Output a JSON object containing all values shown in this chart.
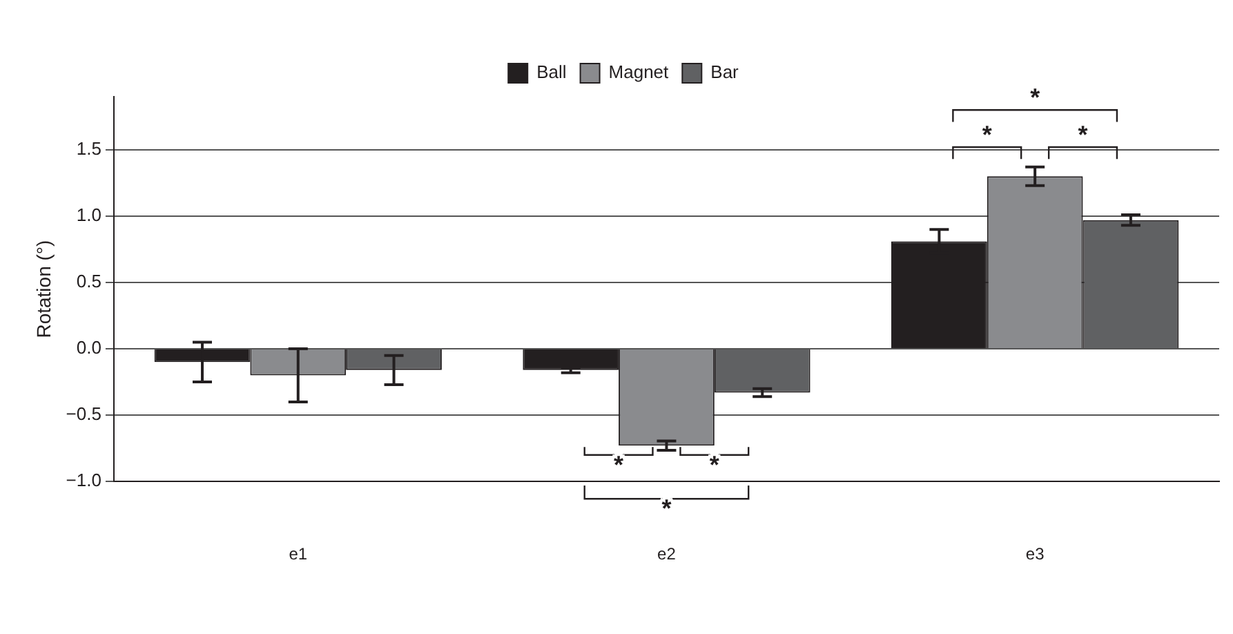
{
  "chart_data": {
    "type": "bar",
    "ylabel": "Rotation (°)",
    "categories": [
      "e1",
      "e2",
      "e3"
    ],
    "series": [
      {
        "name": "Ball",
        "color": "#231f20",
        "values": [
          -0.1,
          -0.16,
          0.81
        ],
        "errors": [
          0.15,
          0.02,
          0.09
        ]
      },
      {
        "name": "Magnet",
        "color": "#8a8b8e",
        "values": [
          -0.2,
          -0.73,
          1.3
        ],
        "errors": [
          0.2,
          0.035,
          0.07
        ]
      },
      {
        "name": "Bar",
        "color": "#606163",
        "values": [
          -0.16,
          -0.33,
          0.97
        ],
        "errors": [
          0.11,
          0.03,
          0.04
        ]
      }
    ],
    "ylim": [
      -1.0,
      1.9
    ],
    "yticks": [
      {
        "value": -1.0,
        "label": "−1.0"
      },
      {
        "value": -0.5,
        "label": "−0.5"
      },
      {
        "value": 0,
        "label": "0.0"
      },
      {
        "value": 0.5,
        "label": "0.5"
      },
      {
        "value": 1.0,
        "label": "1.0"
      },
      {
        "value": 1.5,
        "label": "1.5"
      }
    ],
    "grid": "y",
    "legend": "top",
    "annotations": [
      "*",
      "*",
      "*",
      "*",
      "*",
      "*"
    ]
  }
}
